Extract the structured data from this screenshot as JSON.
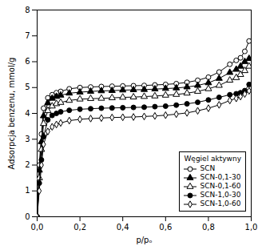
{
  "chart_data": {
    "type": "line",
    "xlabel": "p/pₒ",
    "ylabel": "Adsorpcja benzenu, mmol/g",
    "xlim": [
      0.0,
      1.0
    ],
    "ylim": [
      0,
      8
    ],
    "xticks": [
      {
        "value": 0.0,
        "label": "0,0"
      },
      {
        "value": 0.2,
        "label": "0,2"
      },
      {
        "value": 0.4,
        "label": "0,4"
      },
      {
        "value": 0.6,
        "label": "0,6"
      },
      {
        "value": 0.8,
        "label": "0,8"
      },
      {
        "value": 1.0,
        "label": "1,0"
      }
    ],
    "yticks": [
      0,
      1,
      2,
      3,
      4,
      5,
      6,
      7,
      8
    ],
    "grid": false,
    "legend": "lower right",
    "legend_title": "Węgiel aktywny",
    "x": [
      0.0,
      0.01,
      0.02,
      0.03,
      0.05,
      0.07,
      0.09,
      0.11,
      0.15,
      0.2,
      0.25,
      0.3,
      0.35,
      0.4,
      0.45,
      0.5,
      0.55,
      0.6,
      0.65,
      0.7,
      0.75,
      0.8,
      0.85,
      0.9,
      0.93,
      0.95,
      0.97,
      0.99
    ],
    "series": [
      {
        "name": "SCN",
        "color": "black",
        "marker": "circle-open",
        "values": [
          0.0,
          2.0,
          3.2,
          4.2,
          4.6,
          4.72,
          4.8,
          4.85,
          4.95,
          5.0,
          5.02,
          5.04,
          5.05,
          5.06,
          5.07,
          5.08,
          5.1,
          5.12,
          5.15,
          5.2,
          5.28,
          5.4,
          5.6,
          5.9,
          6.05,
          6.15,
          6.4,
          6.8
        ]
      },
      {
        "name": "SCN-0,1-30",
        "color": "black",
        "marker": "triangle",
        "values": [
          0.0,
          1.8,
          2.9,
          3.9,
          4.4,
          4.58,
          4.65,
          4.7,
          4.78,
          4.82,
          4.85,
          4.87,
          4.88,
          4.9,
          4.91,
          4.92,
          4.94,
          4.96,
          4.98,
          5.02,
          5.08,
          5.18,
          5.35,
          5.58,
          5.7,
          5.82,
          6.0,
          6.12
        ]
      },
      {
        "name": "SCN-0,1-60",
        "color": "black",
        "marker": "triangle-open",
        "values": [
          0.0,
          1.5,
          2.6,
          3.6,
          4.1,
          4.28,
          4.37,
          4.42,
          4.5,
          4.55,
          4.57,
          4.58,
          4.6,
          4.62,
          4.63,
          4.65,
          4.67,
          4.7,
          4.73,
          4.78,
          4.85,
          4.95,
          5.08,
          5.28,
          5.38,
          5.5,
          5.65,
          5.82
        ]
      },
      {
        "name": "SCN-1,0-30",
        "color": "black",
        "marker": "circle",
        "values": [
          0.0,
          1.3,
          2.2,
          3.1,
          3.75,
          3.92,
          4.0,
          4.06,
          4.12,
          4.16,
          4.18,
          4.2,
          4.21,
          4.22,
          4.23,
          4.24,
          4.26,
          4.28,
          4.32,
          4.37,
          4.43,
          4.52,
          4.62,
          4.72,
          4.76,
          4.8,
          4.88,
          5.12
        ]
      },
      {
        "name": "SCN-1,0-60",
        "color": "black",
        "marker": "diamond-open",
        "values": [
          0.0,
          1.0,
          2.0,
          2.8,
          3.3,
          3.48,
          3.57,
          3.63,
          3.72,
          3.77,
          3.8,
          3.82,
          3.84,
          3.85,
          3.86,
          3.88,
          3.9,
          3.93,
          3.97,
          4.02,
          4.1,
          4.2,
          4.33,
          4.5,
          4.58,
          4.65,
          4.75,
          4.87
        ]
      }
    ]
  }
}
